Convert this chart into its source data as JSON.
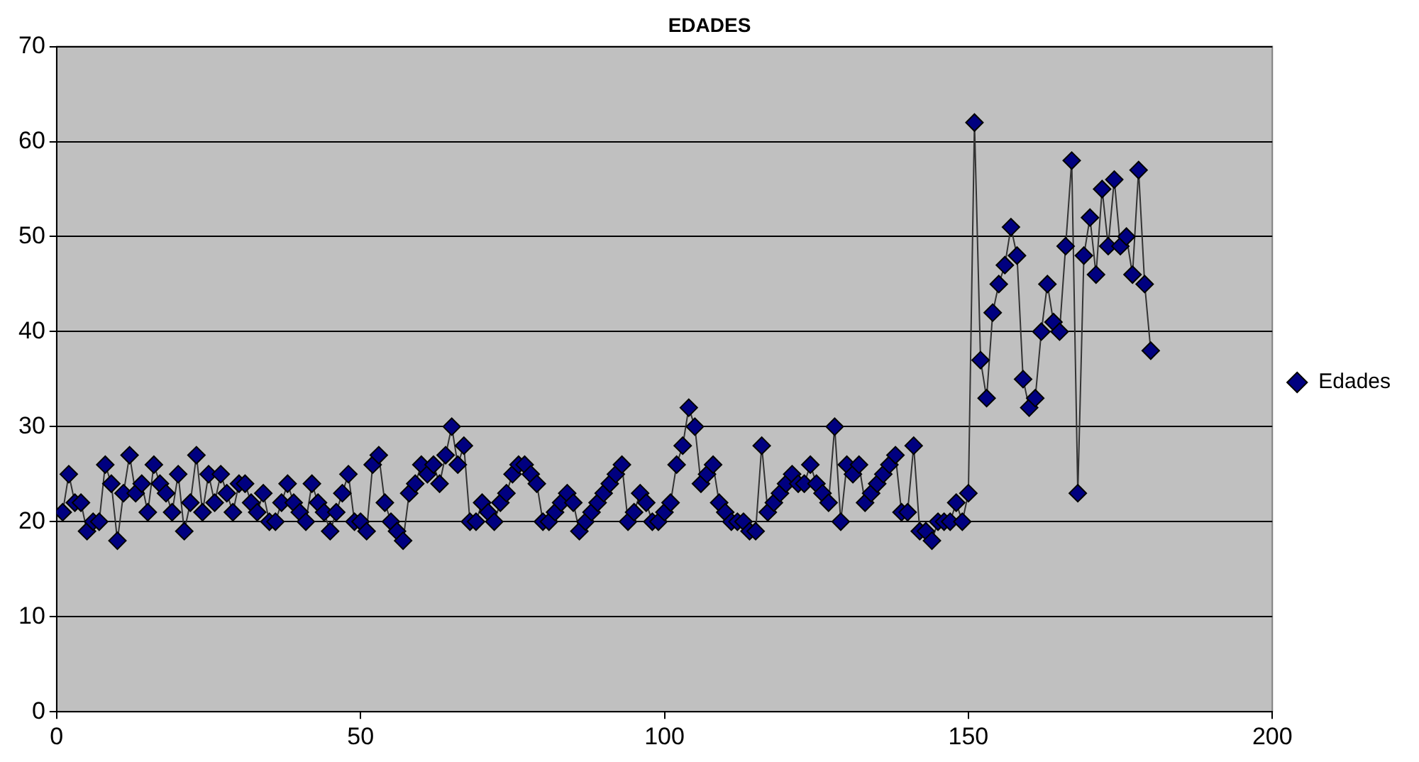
{
  "chart_data": {
    "type": "line",
    "title": "EDADES",
    "marker": "diamond",
    "legend": "right",
    "grid": "y",
    "xlim": [
      0,
      200
    ],
    "xticks": [
      0,
      50,
      100,
      150,
      200
    ],
    "ylim": [
      0,
      70
    ],
    "yticks": [
      0,
      10,
      20,
      30,
      40,
      50,
      60,
      70
    ],
    "x": [
      1,
      2,
      3,
      4,
      5,
      6,
      7,
      8,
      9,
      10,
      11,
      12,
      13,
      14,
      15,
      16,
      17,
      18,
      19,
      20,
      21,
      22,
      23,
      24,
      25,
      26,
      27,
      28,
      29,
      30,
      31,
      32,
      33,
      34,
      35,
      36,
      37,
      38,
      39,
      40,
      41,
      42,
      43,
      44,
      45,
      46,
      47,
      48,
      49,
      50,
      51,
      52,
      53,
      54,
      55,
      56,
      57,
      58,
      59,
      60,
      61,
      62,
      63,
      64,
      65,
      66,
      67,
      68,
      69,
      70,
      71,
      72,
      73,
      74,
      75,
      76,
      77,
      78,
      79,
      80,
      81,
      82,
      83,
      84,
      85,
      86,
      87,
      88,
      89,
      90,
      91,
      92,
      93,
      94,
      95,
      96,
      97,
      98,
      99,
      100,
      101,
      102,
      103,
      104,
      105,
      106,
      107,
      108,
      109,
      110,
      111,
      112,
      113,
      114,
      115,
      116,
      117,
      118,
      119,
      120,
      121,
      122,
      123,
      124,
      125,
      126,
      127,
      128,
      129,
      130,
      131,
      132,
      133,
      134,
      135,
      136,
      137,
      138,
      139,
      140,
      141,
      142,
      143,
      144,
      145,
      146,
      147,
      148,
      149,
      150,
      151,
      152,
      153,
      154,
      155,
      156,
      157,
      158,
      159,
      160,
      161,
      162,
      163,
      164,
      165,
      166,
      167,
      168,
      169,
      170,
      171,
      172,
      173,
      174,
      175,
      176,
      177,
      178,
      179,
      180
    ],
    "series": [
      {
        "name": "Edades",
        "color": "#000080",
        "values": [
          21,
          25,
          22,
          22,
          19,
          20,
          20,
          26,
          24,
          18,
          23,
          27,
          23,
          24,
          21,
          26,
          24,
          23,
          21,
          25,
          19,
          22,
          27,
          21,
          25,
          22,
          25,
          23,
          21,
          24,
          24,
          22,
          21,
          23,
          20,
          20,
          22,
          24,
          22,
          21,
          20,
          24,
          22,
          21,
          19,
          21,
          23,
          25,
          20,
          20,
          19,
          26,
          27,
          22,
          20,
          19,
          18,
          23,
          24,
          26,
          25,
          26,
          24,
          27,
          30,
          26,
          28,
          20,
          20,
          22,
          21,
          20,
          22,
          23,
          25,
          26,
          26,
          25,
          24,
          20,
          20,
          21,
          22,
          23,
          22,
          19,
          20,
          21,
          22,
          23,
          24,
          25,
          26,
          20,
          21,
          23,
          22,
          20,
          20,
          21,
          22,
          26,
          28,
          32,
          30,
          24,
          25,
          26,
          22,
          21,
          20,
          20,
          20,
          19,
          19,
          28,
          21,
          22,
          23,
          24,
          25,
          24,
          24,
          26,
          24,
          23,
          22,
          30,
          20,
          26,
          25,
          26,
          22,
          23,
          24,
          25,
          26,
          27,
          21,
          21,
          28,
          19,
          19,
          18,
          20,
          20,
          20,
          22,
          20,
          23,
          62,
          37,
          33,
          42,
          45,
          47,
          51,
          48,
          35,
          32,
          33,
          40,
          45,
          41,
          40,
          49,
          58,
          23,
          48,
          52,
          46,
          55,
          49,
          56,
          49,
          50,
          46,
          57,
          45,
          38
        ]
      }
    ]
  }
}
